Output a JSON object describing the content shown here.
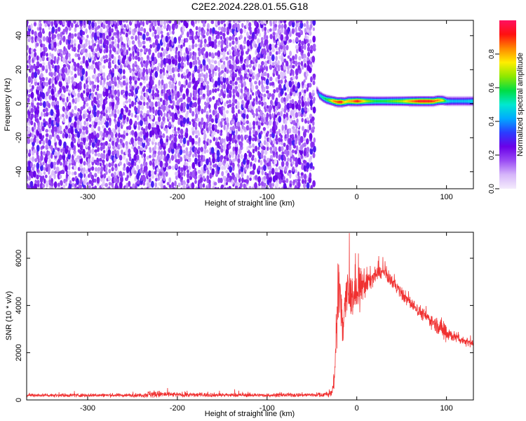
{
  "figure_title": "C2E2.2024.228.01.55.G18",
  "chart_data": [
    {
      "type": "heatmap",
      "xlabel": "Height of straight line (km)",
      "ylabel": "Frequency (Hz)",
      "xlim": [
        -368,
        130
      ],
      "ylim": [
        -50,
        49
      ],
      "x_ticks": [
        -300,
        -200,
        -100,
        0,
        100
      ],
      "y_ticks": [
        -40,
        -20,
        0,
        20,
        40
      ],
      "colorbar": {
        "label": "Normalized spectral amplitude",
        "range": [
          0,
          1
        ],
        "ticks": [
          0.0,
          0.2,
          0.4,
          0.6,
          0.8
        ],
        "colors": [
          "#f4ecfc",
          "#d6b6fa",
          "#9b4cf4",
          "#6a00e8",
          "#2a3cff",
          "#00aaff",
          "#00e8d0",
          "#00dd44",
          "#8ee800",
          "#ffee00",
          "#ff8800",
          "#ff1010",
          "#ff1060"
        ]
      },
      "noise_region_x": [
        -368,
        -45
      ],
      "noise_mean_amplitude": 0.12,
      "signal_track": {
        "x": [
          -45,
          -42,
          -38,
          -34,
          -30,
          -26,
          -22,
          -18,
          -14,
          -10,
          -5,
          0,
          10,
          20,
          30,
          40,
          50,
          60,
          70,
          80,
          85,
          90,
          95,
          100,
          105,
          110,
          120,
          130
        ],
        "freq": [
          8,
          5,
          3.5,
          2.5,
          2,
          1.5,
          1,
          1,
          1,
          1.5,
          1.5,
          1.5,
          1.5,
          1.5,
          1.5,
          1.5,
          1.5,
          1.5,
          1.5,
          1.5,
          1.5,
          2,
          2,
          1.5,
          1.5,
          1.5,
          1.5,
          1.5
        ],
        "peak_amplitude": [
          0.25,
          0.45,
          0.55,
          0.6,
          0.7,
          0.85,
          0.9,
          0.95,
          0.75,
          0.8,
          0.85,
          0.95,
          0.7,
          0.6,
          0.6,
          0.65,
          0.7,
          0.85,
          0.95,
          0.95,
          0.9,
          0.85,
          0.75,
          0.5,
          0.45,
          0.45,
          0.45,
          0.5
        ]
      }
    },
    {
      "type": "line",
      "xlabel": "Height of straight line (km)",
      "ylabel": "SNR (10 * v/v)",
      "xlim": [
        -368,
        130
      ],
      "ylim": [
        0,
        7100
      ],
      "x_ticks": [
        -300,
        -200,
        -100,
        0,
        100
      ],
      "y_ticks": [
        0,
        2000,
        4000,
        6000
      ],
      "series": [
        {
          "color": "#f03030",
          "envelope": {
            "x": [
              -368,
              -240,
              -230,
              -200,
              -100,
              -40,
              -28,
              -25,
              -22,
              -20,
              -18,
              -15,
              -12,
              -8,
              -3,
              0,
              3,
              8,
              12,
              15,
              18,
              22,
              26,
              30,
              40,
              50,
              60,
              70,
              80,
              90,
              95,
              98,
              100,
              102,
              105,
              110,
              120,
              130
            ],
            "mean": [
              200,
              200,
              250,
              220,
              200,
              220,
              250,
              1000,
              3500,
              4200,
              4000,
              3400,
              4400,
              4400,
              4500,
              4300,
              4700,
              4900,
              5000,
              5100,
              5200,
              5300,
              5400,
              5400,
              5000,
              4500,
              4100,
              3750,
              3450,
              3150,
              3000,
              2950,
              2900,
              2850,
              2750,
              2650,
              2500,
              2400
            ],
            "spread": [
              70,
              70,
              160,
              90,
              70,
              90,
              120,
              600,
              1500,
              1700,
              1700,
              1100,
              1300,
              900,
              700,
              700,
              800,
              700,
              500,
              400,
              350,
              300,
              250,
              250,
              250,
              250,
              250,
              250,
              250,
              300,
              400,
              550,
              500,
              350,
              250,
              200,
              170,
              170
            ]
          }
        }
      ]
    }
  ]
}
